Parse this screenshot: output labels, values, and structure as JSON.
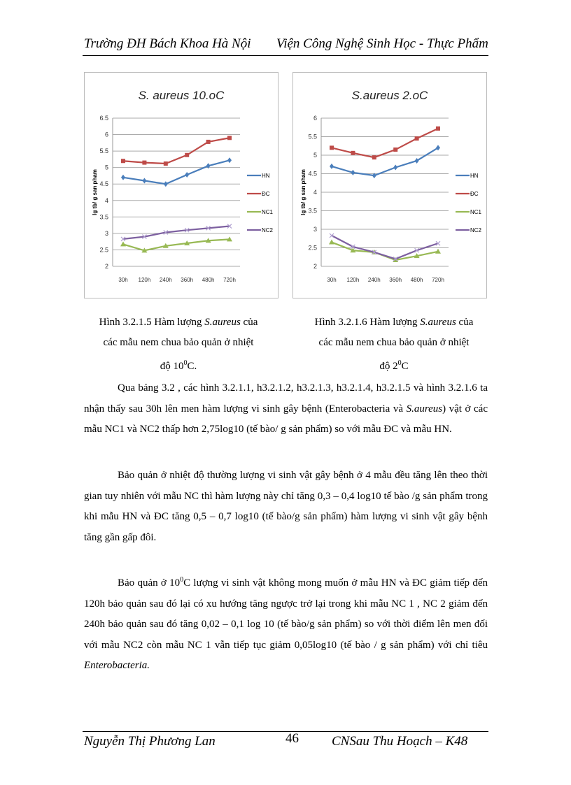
{
  "header": {
    "left": "Trường ĐH Bách Khoa Hà Nội",
    "right": "Viện Công Nghệ Sinh Học - Thực Phẩm"
  },
  "chart_data": [
    {
      "type": "line",
      "title": "S. aureus 10.oC",
      "ylabel": "lg tb/ g san pham",
      "xlabel": "",
      "categories": [
        "30h",
        "120h",
        "240h",
        "360h",
        "480h",
        "720h"
      ],
      "ylim": [
        2,
        6.5
      ],
      "yticks": [
        "2",
        "2.5",
        "3",
        "3.5",
        "4",
        "4.5",
        "5",
        "5.5",
        "6",
        "6.5"
      ],
      "grid": true,
      "legend": "right",
      "series": [
        {
          "name": "HN",
          "color": "#4a7ebb",
          "marker": "diamond",
          "values": [
            4.7,
            4.6,
            4.5,
            4.78,
            5.05,
            5.22
          ]
        },
        {
          "name": "ĐC",
          "color": "#be4b48",
          "marker": "square",
          "values": [
            5.2,
            5.15,
            5.12,
            5.38,
            5.78,
            5.9
          ]
        },
        {
          "name": "NC1",
          "color": "#98b954",
          "marker": "triangle",
          "values": [
            2.67,
            2.48,
            2.62,
            2.7,
            2.78,
            2.82
          ]
        },
        {
          "name": "NC2",
          "color": "#7d60a0",
          "marker": "x",
          "values": [
            2.83,
            2.9,
            3.03,
            3.1,
            3.16,
            3.22
          ]
        }
      ]
    },
    {
      "type": "line",
      "title": "S.aureus 2.oC",
      "ylabel": "lg tb/ g san pham",
      "xlabel": "",
      "categories": [
        "30h",
        "120h",
        "240h",
        "360h",
        "480h",
        "720h"
      ],
      "ylim": [
        2,
        6
      ],
      "yticks": [
        "2",
        "2.5",
        "3",
        "3.5",
        "4",
        "4.5",
        "5",
        "5.5",
        "6"
      ],
      "grid": true,
      "legend": "right",
      "series": [
        {
          "name": "HN",
          "color": "#4a7ebb",
          "marker": "diamond",
          "values": [
            4.7,
            4.53,
            4.45,
            4.67,
            4.85,
            5.2
          ]
        },
        {
          "name": "ĐC",
          "color": "#be4b48",
          "marker": "square",
          "values": [
            5.2,
            5.06,
            4.94,
            5.15,
            5.45,
            5.72
          ]
        },
        {
          "name": "NC1",
          "color": "#98b954",
          "marker": "triangle",
          "values": [
            2.65,
            2.43,
            2.38,
            2.17,
            2.28,
            2.4
          ]
        },
        {
          "name": "NC2",
          "color": "#7d60a0",
          "marker": "x",
          "values": [
            2.83,
            2.53,
            2.38,
            2.2,
            2.43,
            2.62
          ]
        }
      ]
    }
  ],
  "captions": [
    {
      "l1a": "Hình 3.2.1.5 Hàm lượng ",
      "l1i": "S.aureus",
      "l1b": " của",
      "l2": "các mẫu nem chua bảo quản ở nhiệt",
      "l3a": "độ 10",
      "sup": "0",
      "l3b": "C."
    },
    {
      "l1a": "Hình 3.2.1.6 Hàm lượng ",
      "l1i": "S.aureus",
      "l1b": " của",
      "l2": "các mẫu nem chua bảo quản ở nhiệt",
      "l3a": "độ 2",
      "sup": "0",
      "l3b": "C"
    }
  ],
  "paragraphs": {
    "p1a": "Qua bảng 3.2 , các hình 3.2.1.1, h3.2.1.2, h3.2.1.3, h3.2.1.4, h3.2.1.5 và hình 3.2.1.6 ta nhận thấy sau 30h lên men hàm  lượng vi sinh gây bệnh (Enterobacteria và ",
    "p1i": "S.aureus",
    "p1b": ") vật ở các mẫu NC1 và NC2 thấp hơn 2,75log10 (tế bào/ g sản phẩm) so với mẫu ĐC và mẫu HN.",
    "p2": "Bảo quản ở nhiệt độ thường lượng vi sinh vật gây bệnh ở 4 mẫu đều tăng lên theo thời gian tuy nhiên với mẫu NC thì hàm lượng này chỉ tăng 0,3 – 0,4 log10 tế bào /g sản phẩm trong khi mẫu HN và ĐC tăng 0,5 – 0,7 log10 (tế bào/g sản phẩm) hàm  lượng vi sinh vật gây bệnh tăng gần gấp đôi.",
    "p3a": "Bảo quản ở 10",
    "p3sup": "0",
    "p3b": "C lượng vi sinh vật không mong muốn ở mẫu HN và ĐC giảm tiếp đến 120h bảo quản sau đó lại có xu hướng tăng ngược trở lại trong khi mẫu NC 1 , NC 2 giảm đến 240h bảo quản sau đó tăng 0,02 – 0,1 log 10 (tế bào/g sản phẩm) so với thời điểm lên men đối với mẫu NC2 còn mẫu NC 1 vẫn tiếp tục giảm 0,05log10 (tế bào / g sản phẩm) với chỉ tiêu ",
    "p3i": "Enterobacteria."
  },
  "footer": {
    "left": "Nguyễn Thị Phương Lan",
    "page": "46",
    "right": "CNSau Thu Hoạch – K48"
  }
}
